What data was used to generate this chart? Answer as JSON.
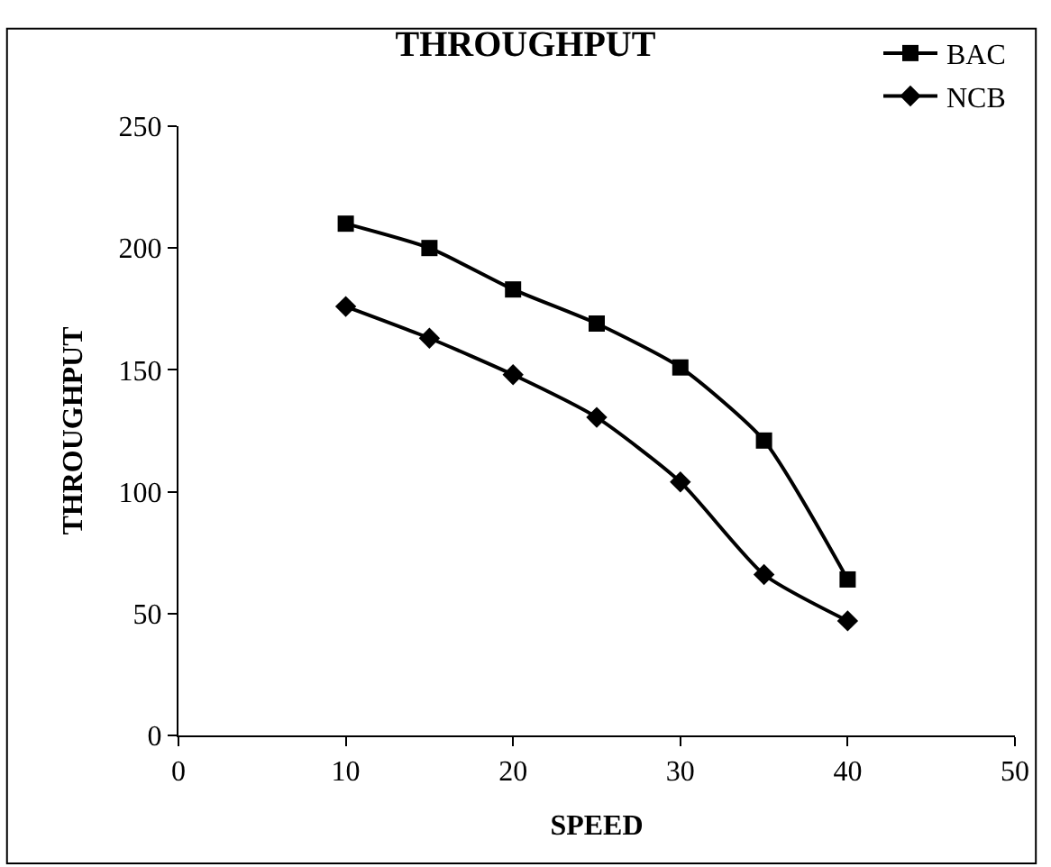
{
  "chart_data": {
    "type": "line",
    "title": "THROUGHPUT",
    "xlabel": "SPEED",
    "ylabel": "THROUGHPUT",
    "x": [
      10,
      15,
      20,
      25,
      30,
      35,
      40
    ],
    "series": [
      {
        "name": "BAC",
        "color": "#000000",
        "marker": "square",
        "values": [
          210,
          200,
          183,
          169,
          151,
          121,
          64
        ]
      },
      {
        "name": "NCB",
        "color": "#000000",
        "marker": "diamond",
        "values": [
          176,
          163,
          148,
          130.5,
          104,
          66,
          47
        ]
      }
    ],
    "xlim": [
      0,
      50
    ],
    "xticks": [
      0,
      10,
      20,
      30,
      40,
      50
    ],
    "ylim": [
      0,
      250
    ],
    "yticks": [
      0,
      50,
      100,
      150,
      200,
      250
    ],
    "legend": "top right",
    "line_style": "solid"
  }
}
